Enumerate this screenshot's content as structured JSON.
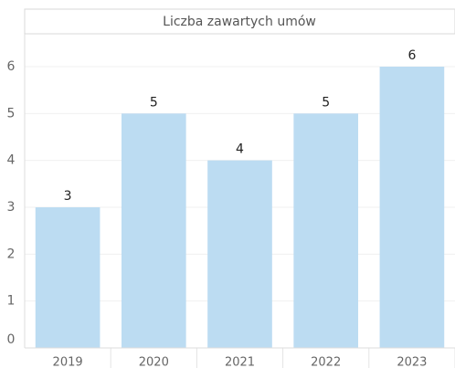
{
  "chart_data": {
    "type": "bar",
    "title": "Liczba zawartych umów",
    "categories": [
      "2019",
      "2020",
      "2021",
      "2022",
      "2023"
    ],
    "values": [
      3,
      5,
      4,
      5,
      6
    ],
    "color": "#bcdcf2",
    "ylim": [
      0,
      6
    ],
    "yticks": [
      0,
      1,
      2,
      3,
      4,
      5,
      6
    ],
    "grid": true
  }
}
